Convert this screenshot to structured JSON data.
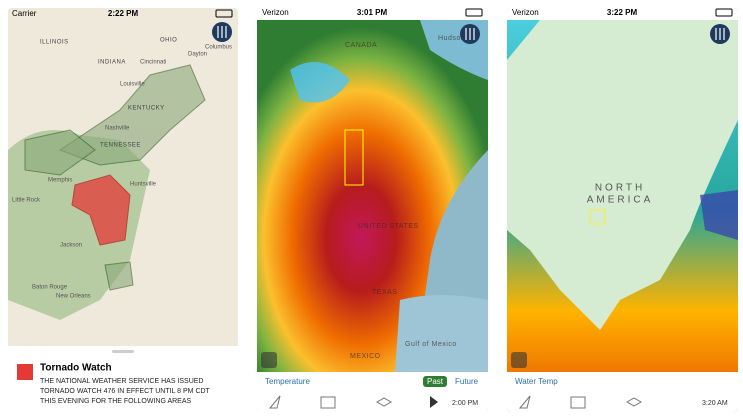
{
  "screens": [
    {
      "status": {
        "carrier": "Carrier",
        "time": "2:22 PM"
      },
      "map_labels": [
        "ILLINOIS",
        "INDIANA",
        "OHIO",
        "KENTUCKY",
        "TENNESSEE",
        "Columbus",
        "Dayton",
        "Cincinnati",
        "Louisville",
        "Nashville",
        "Huntsville",
        "Memphis",
        "Little Rock",
        "Jackson",
        "Baton Rouge",
        "New Orleans"
      ],
      "alert": {
        "title": "Tornado Watch",
        "lines": [
          "THE NATIONAL WEATHER SERVICE HAS ISSUED",
          "TORNADO WATCH 476 IN EFFECT UNTIL 8 PM CDT",
          "THIS EVENING FOR THE FOLLOWING AREAS"
        ]
      }
    },
    {
      "status": {
        "carrier": "Verizon",
        "time": "3:01 PM"
      },
      "map_labels": [
        "CANADA",
        "Hudson",
        "UNITED STATES",
        "TEXAS",
        "MEXICO",
        "Gulf of Mexico"
      ],
      "layer": "Temperature",
      "past": "Past",
      "future": "Future",
      "timestamp": "2:00 PM"
    },
    {
      "status": {
        "carrier": "Verizon",
        "time": "3:22 PM"
      },
      "map_labels": [
        "NORTH",
        "AMERICA"
      ],
      "layer": "Water Temp",
      "timestamp": "3:20 AM"
    }
  ]
}
